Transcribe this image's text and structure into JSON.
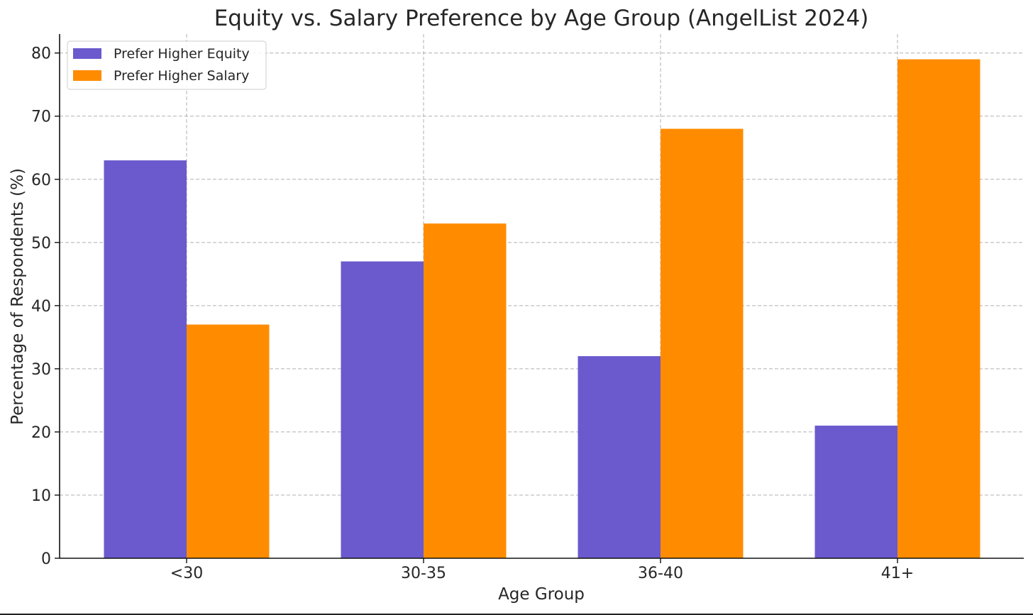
{
  "chart_data": {
    "type": "bar",
    "title": "Equity vs. Salary Preference by Age Group (AngelList 2024)",
    "xlabel": "Age Group",
    "ylabel": "Percentage of Respondents (%)",
    "categories": [
      "<30",
      "30-35",
      "36-40",
      "41+"
    ],
    "series": [
      {
        "name": "Prefer Higher Equity",
        "values": [
          63,
          47,
          32,
          21
        ],
        "color": "#6a5acd"
      },
      {
        "name": "Prefer Higher Salary",
        "values": [
          37,
          53,
          68,
          79
        ],
        "color": "#ff8c00"
      }
    ],
    "ylim": [
      0,
      83
    ],
    "yticks": [
      0,
      10,
      20,
      30,
      40,
      50,
      60,
      70,
      80
    ],
    "grid": true,
    "legend": "top-left"
  }
}
